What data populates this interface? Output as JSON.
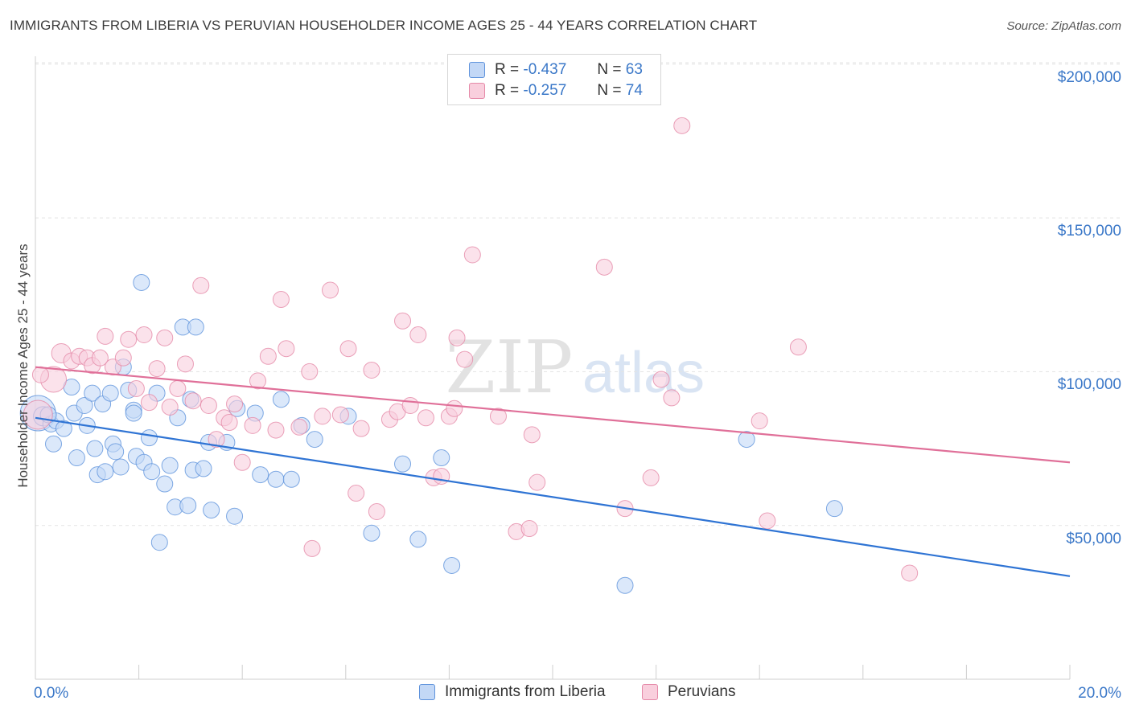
{
  "title": "IMMIGRANTS FROM LIBERIA VS PERUVIAN HOUSEHOLDER INCOME AGES 25 - 44 YEARS CORRELATION CHART",
  "source": "Source: ZipAtlas.com",
  "watermark": {
    "zip": "ZIP",
    "atlas": "atlas"
  },
  "legend": {
    "r_label": "R =",
    "n_label": "N =",
    "items": [
      {
        "r": "-0.437",
        "n": "63"
      },
      {
        "r": "-0.257",
        "n": "74"
      }
    ]
  },
  "chart_data": {
    "type": "scatter",
    "ylabel": "Householder Income Ages 25 - 44 years",
    "xlim": [
      0,
      20
    ],
    "ylim": [
      0,
      210000
    ],
    "y_ticks": [
      {
        "value": 50000,
        "label": "$50,000"
      },
      {
        "value": 100000,
        "label": "$100,000"
      },
      {
        "value": 150000,
        "label": "$150,000"
      },
      {
        "value": 200000,
        "label": "$200,000"
      }
    ],
    "x_tick_labels": {
      "min": "0.0%",
      "max": "20.0%"
    },
    "grid": true,
    "legend_position": "top-center",
    "series": [
      {
        "name": "Immigrants from Liberia",
        "color": "#5f93dc",
        "fill": "#c3d8f6",
        "trend": {
          "x": [
            0,
            20
          ],
          "y": [
            85000,
            33500
          ]
        },
        "points": [
          [
            0.05,
            86500,
            22
          ],
          [
            0.15,
            85500,
            12
          ],
          [
            0.3,
            83000,
            10
          ],
          [
            0.4,
            84000,
            10
          ],
          [
            0.55,
            81500,
            10
          ],
          [
            0.35,
            76500,
            10
          ],
          [
            0.7,
            95000,
            10
          ],
          [
            0.75,
            86500,
            10
          ],
          [
            0.8,
            72000,
            10
          ],
          [
            0.95,
            89000,
            10
          ],
          [
            1.0,
            82500,
            10
          ],
          [
            1.1,
            93000,
            10
          ],
          [
            1.15,
            75000,
            10
          ],
          [
            1.2,
            66500,
            10
          ],
          [
            1.3,
            89500,
            10
          ],
          [
            1.35,
            67500,
            10
          ],
          [
            1.45,
            93000,
            10
          ],
          [
            1.5,
            76500,
            10
          ],
          [
            1.55,
            74000,
            10
          ],
          [
            1.65,
            69000,
            10
          ],
          [
            1.7,
            101500,
            10
          ],
          [
            1.8,
            94000,
            10
          ],
          [
            1.9,
            87500,
            10
          ],
          [
            1.95,
            72500,
            10
          ],
          [
            2.05,
            129000,
            10
          ],
          [
            2.1,
            70500,
            10
          ],
          [
            2.2,
            78500,
            10
          ],
          [
            2.25,
            67500,
            10
          ],
          [
            2.35,
            93000,
            10
          ],
          [
            2.4,
            44500,
            10
          ],
          [
            2.5,
            63500,
            10
          ],
          [
            2.6,
            69500,
            10
          ],
          [
            2.7,
            56000,
            10
          ],
          [
            2.75,
            85000,
            10
          ],
          [
            2.85,
            114500,
            10
          ],
          [
            2.95,
            56500,
            10
          ],
          [
            3.05,
            68000,
            10
          ],
          [
            3.1,
            114500,
            10
          ],
          [
            3.25,
            68500,
            10
          ],
          [
            3.35,
            77000,
            10
          ],
          [
            3.4,
            55000,
            10
          ],
          [
            3.7,
            77000,
            10
          ],
          [
            3.9,
            88000,
            10
          ],
          [
            3.85,
            53000,
            10
          ],
          [
            4.25,
            86500,
            10
          ],
          [
            4.35,
            66500,
            10
          ],
          [
            4.65,
            65000,
            10
          ],
          [
            4.75,
            91000,
            10
          ],
          [
            4.95,
            65000,
            10
          ],
          [
            5.15,
            82500,
            10
          ],
          [
            5.4,
            78000,
            10
          ],
          [
            6.05,
            85500,
            10
          ],
          [
            6.5,
            47500,
            10
          ],
          [
            7.1,
            70000,
            10
          ],
          [
            7.4,
            45500,
            10
          ],
          [
            7.85,
            72000,
            10
          ],
          [
            8.05,
            37000,
            10
          ],
          [
            11.4,
            30500,
            10
          ],
          [
            13.75,
            78000,
            10
          ],
          [
            15.45,
            55500,
            10
          ],
          [
            0.25,
            86000,
            10
          ],
          [
            1.9,
            86500,
            10
          ],
          [
            3.0,
            91000,
            10
          ]
        ]
      },
      {
        "name": "Peruvians",
        "color": "#e589a8",
        "fill": "#f9cfdd",
        "trend": {
          "x": [
            0,
            20
          ],
          "y": [
            101500,
            70500
          ]
        },
        "points": [
          [
            0.05,
            86000,
            18
          ],
          [
            0.35,
            97500,
            16
          ],
          [
            0.5,
            106000,
            12
          ],
          [
            0.7,
            103500,
            10
          ],
          [
            0.85,
            105000,
            10
          ],
          [
            1.0,
            104500,
            10
          ],
          [
            1.1,
            102000,
            10
          ],
          [
            1.25,
            104500,
            10
          ],
          [
            1.35,
            111500,
            10
          ],
          [
            1.5,
            101500,
            10
          ],
          [
            1.7,
            104500,
            10
          ],
          [
            1.8,
            110500,
            10
          ],
          [
            1.95,
            94500,
            10
          ],
          [
            2.1,
            112000,
            10
          ],
          [
            2.2,
            90000,
            10
          ],
          [
            2.35,
            101000,
            10
          ],
          [
            2.5,
            111000,
            10
          ],
          [
            2.6,
            88500,
            10
          ],
          [
            2.75,
            94500,
            10
          ],
          [
            2.9,
            102500,
            10
          ],
          [
            3.05,
            90500,
            10
          ],
          [
            3.2,
            128000,
            10
          ],
          [
            3.35,
            89000,
            10
          ],
          [
            3.5,
            78000,
            10
          ],
          [
            3.65,
            85000,
            10
          ],
          [
            3.75,
            83500,
            10
          ],
          [
            3.85,
            89500,
            10
          ],
          [
            4.0,
            70500,
            10
          ],
          [
            4.2,
            82500,
            10
          ],
          [
            4.3,
            97000,
            10
          ],
          [
            4.5,
            105000,
            10
          ],
          [
            4.65,
            81000,
            10
          ],
          [
            4.75,
            123500,
            10
          ],
          [
            4.85,
            107500,
            10
          ],
          [
            5.1,
            82000,
            10
          ],
          [
            5.3,
            100000,
            10
          ],
          [
            5.35,
            42500,
            10
          ],
          [
            5.55,
            85500,
            10
          ],
          [
            5.7,
            126500,
            10
          ],
          [
            5.9,
            86000,
            10
          ],
          [
            6.05,
            107500,
            10
          ],
          [
            6.2,
            60500,
            10
          ],
          [
            6.3,
            81500,
            10
          ],
          [
            6.5,
            100500,
            10
          ],
          [
            6.6,
            54500,
            10
          ],
          [
            6.85,
            84500,
            10
          ],
          [
            7.0,
            87000,
            10
          ],
          [
            7.1,
            116500,
            10
          ],
          [
            7.25,
            89000,
            10
          ],
          [
            7.4,
            112000,
            10
          ],
          [
            7.55,
            85000,
            10
          ],
          [
            7.7,
            65500,
            10
          ],
          [
            7.85,
            66000,
            10
          ],
          [
            8.0,
            85500,
            10
          ],
          [
            8.1,
            88000,
            10
          ],
          [
            8.15,
            111000,
            10
          ],
          [
            8.3,
            104000,
            10
          ],
          [
            8.45,
            138000,
            10
          ],
          [
            8.95,
            85500,
            10
          ],
          [
            9.3,
            48000,
            10
          ],
          [
            9.55,
            49000,
            10
          ],
          [
            9.6,
            79500,
            10
          ],
          [
            9.7,
            64000,
            10
          ],
          [
            11.0,
            134000,
            10
          ],
          [
            11.4,
            55500,
            10
          ],
          [
            11.9,
            65500,
            10
          ],
          [
            12.1,
            97500,
            10
          ],
          [
            12.3,
            91500,
            10
          ],
          [
            12.5,
            180000,
            10
          ],
          [
            14.0,
            84000,
            10
          ],
          [
            14.15,
            51500,
            10
          ],
          [
            14.75,
            108000,
            10
          ],
          [
            16.9,
            34500,
            10
          ],
          [
            0.1,
            99000,
            10
          ]
        ]
      }
    ]
  }
}
